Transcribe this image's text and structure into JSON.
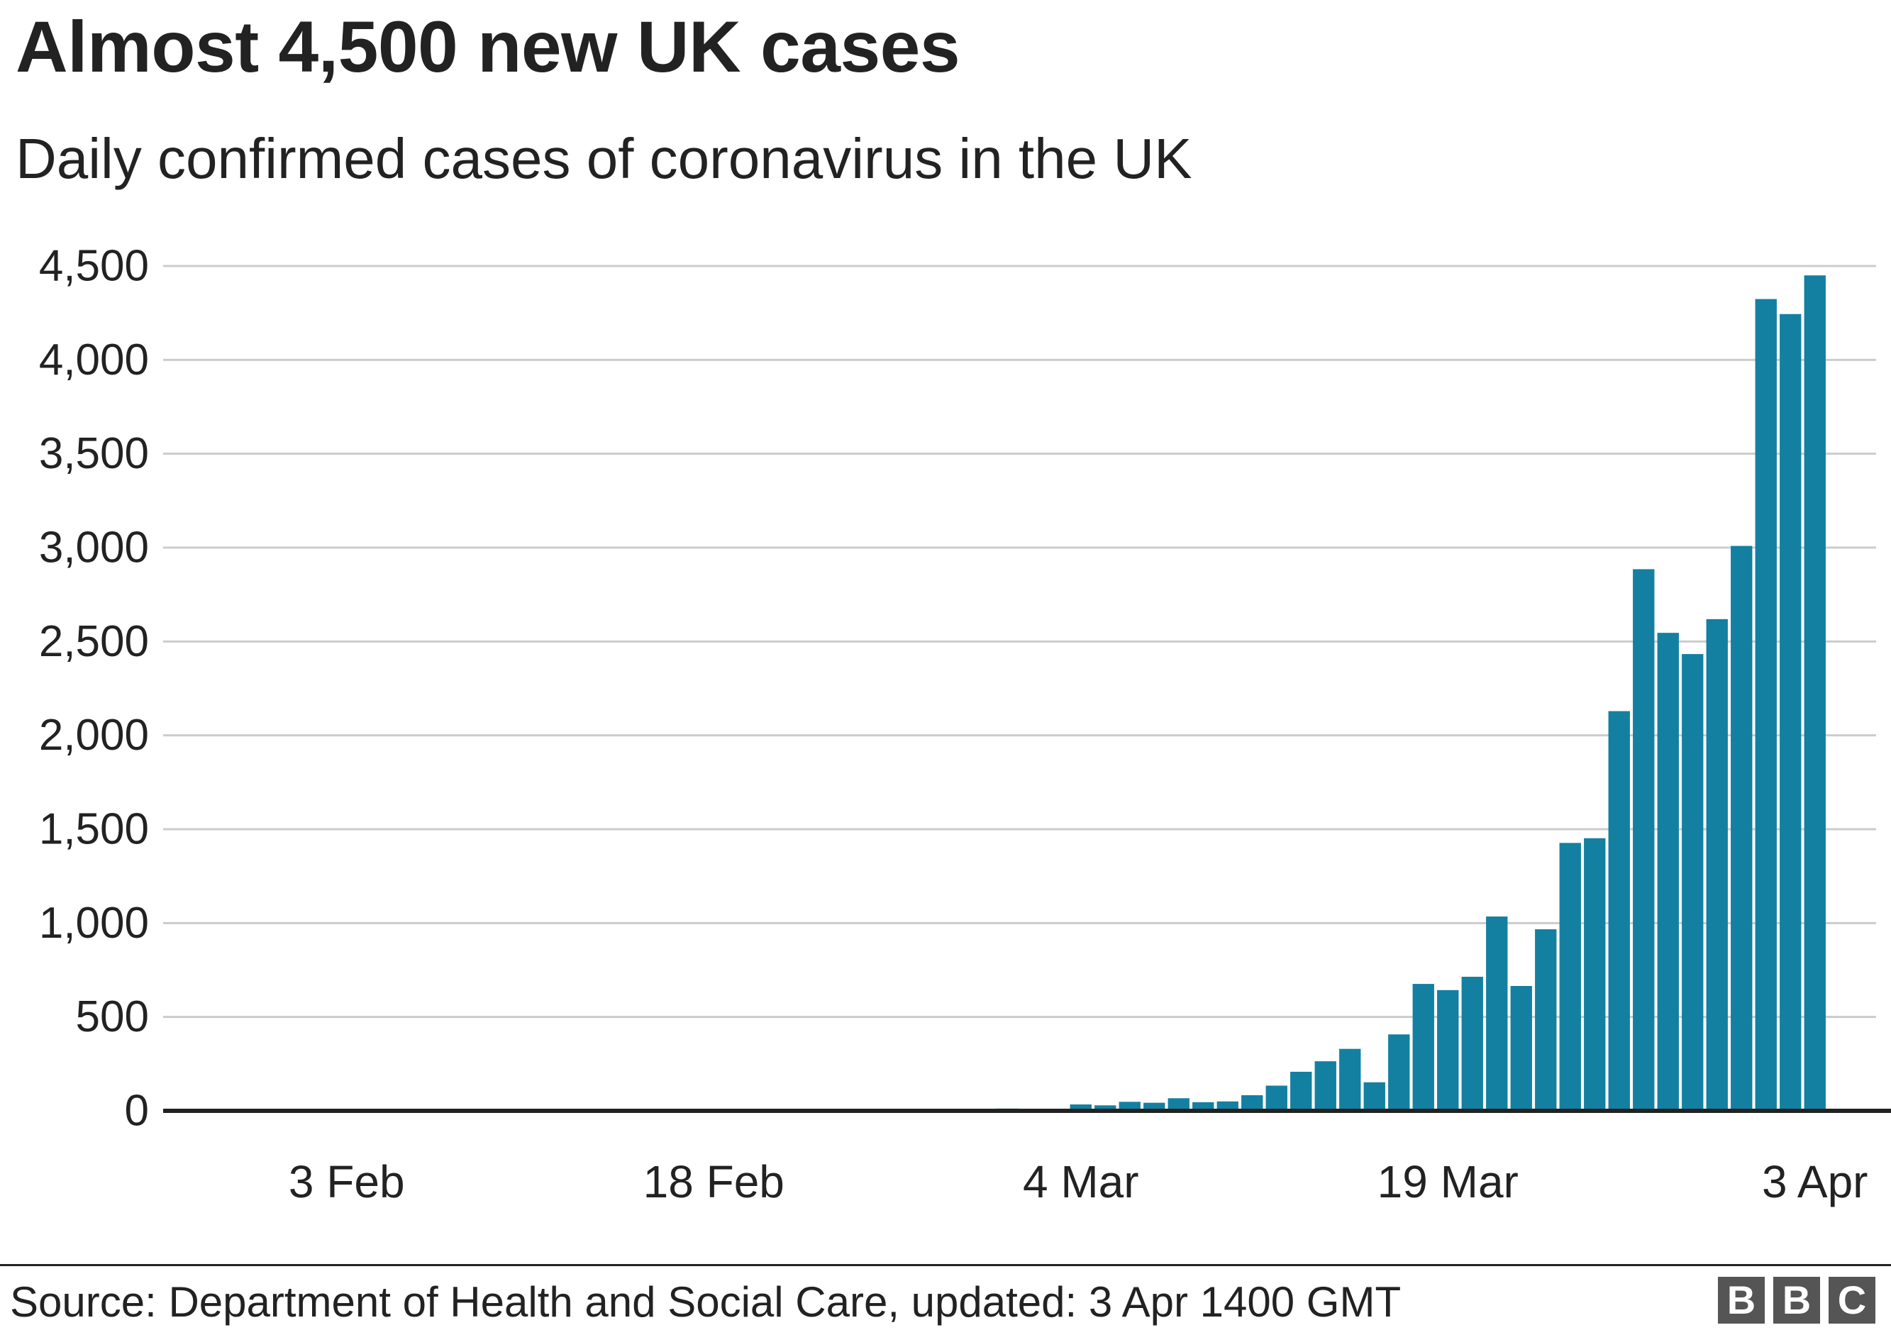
{
  "chart_data": {
    "type": "bar",
    "title": "Almost 4,500 new UK cases",
    "subtitle": "Daily confirmed cases of coronavirus in the UK",
    "xlabel": "",
    "ylabel": "",
    "ylim": [
      0,
      4500
    ],
    "y_ticks": [
      0,
      500,
      1000,
      1500,
      2000,
      2500,
      3000,
      3500,
      4000,
      4500
    ],
    "y_tick_labels": [
      "0",
      "500",
      "1,000",
      "1,500",
      "2,000",
      "2,500",
      "3,000",
      "3,500",
      "4,000",
      "4,500"
    ],
    "x_ticks": [
      "2020-02-03",
      "2020-02-18",
      "2020-03-04",
      "2020-03-19",
      "2020-04-03"
    ],
    "x_tick_labels": [
      "3 Feb",
      "18 Feb",
      "4 Mar",
      "19 Mar",
      "3 Apr"
    ],
    "x_range": [
      "2020-01-27",
      "2020-04-06"
    ],
    "grid": true,
    "bar_color": "#1380a1",
    "x": [
      "2020-03-01",
      "2020-03-02",
      "2020-03-03",
      "2020-03-04",
      "2020-03-05",
      "2020-03-06",
      "2020-03-07",
      "2020-03-08",
      "2020-03-09",
      "2020-03-10",
      "2020-03-11",
      "2020-03-12",
      "2020-03-13",
      "2020-03-14",
      "2020-03-15",
      "2020-03-16",
      "2020-03-17",
      "2020-03-18",
      "2020-03-19",
      "2020-03-20",
      "2020-03-21",
      "2020-03-22",
      "2020-03-23",
      "2020-03-24",
      "2020-03-25",
      "2020-03-26",
      "2020-03-27",
      "2020-03-28",
      "2020-03-29",
      "2020-03-30",
      "2020-03-31",
      "2020-04-01",
      "2020-04-02",
      "2020-04-03"
    ],
    "values": [
      12,
      4,
      11,
      34,
      29,
      48,
      43,
      67,
      46,
      50,
      83,
      134,
      208,
      264,
      330,
      152,
      407,
      676,
      643,
      714,
      1035,
      665,
      967,
      1427,
      1452,
      2129,
      2885,
      2546,
      2433,
      2619,
      3009,
      4324,
      4244,
      4450
    ]
  },
  "footer": {
    "source": "Source: Department of Health and Social Care, updated: 3 Apr 1400 GMT",
    "logo_letters": [
      "B",
      "B",
      "C"
    ]
  }
}
